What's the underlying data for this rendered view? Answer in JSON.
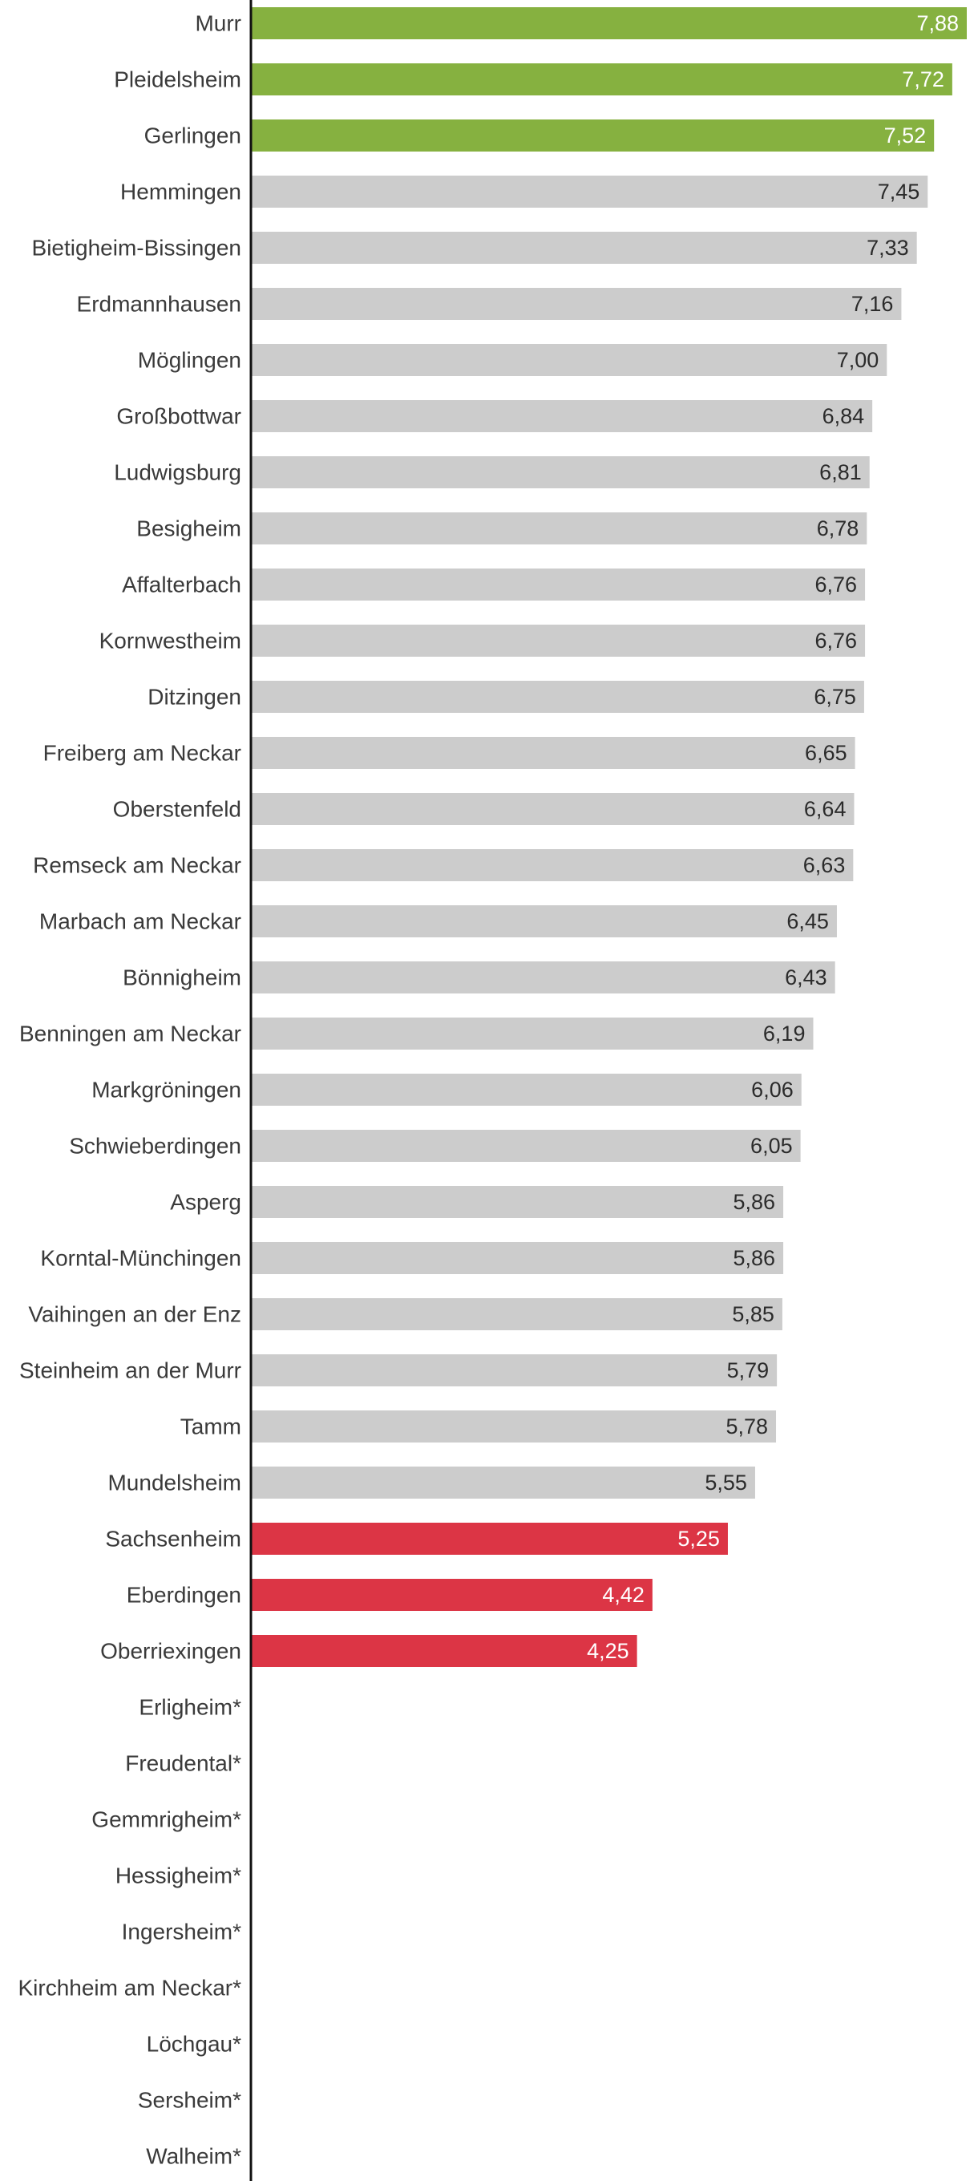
{
  "chart_data": {
    "type": "bar",
    "orientation": "horizontal",
    "title": "",
    "xlabel": "",
    "ylabel": "",
    "xlim": [
      0,
      7.88
    ],
    "grid": false,
    "colors": {
      "top": "#86b140",
      "middle": "#cccccc",
      "bottom": "#dc3545",
      "axis": "#111111",
      "label_dark": "#2b2b2b",
      "label_light": "#ffffff"
    },
    "categories": [
      "Murr",
      "Pleidelsheim",
      "Gerlingen",
      "Hemmingen",
      "Bietigheim-Bissingen",
      "Erdmannhausen",
      "Möglingen",
      "Großbottwar",
      "Ludwigsburg",
      "Besigheim",
      "Affalterbach",
      "Kornwestheim",
      "Ditzingen",
      "Freiberg am Neckar",
      "Oberstenfeld",
      "Remseck am Neckar",
      "Marbach am Neckar",
      "Bönnigheim",
      "Benningen am Neckar",
      "Markgröningen",
      "Schwieberdingen",
      "Asperg",
      "Korntal-Münchingen",
      "Vaihingen an der Enz",
      "Steinheim an der Murr",
      "Tamm",
      "Mundelsheim",
      "Sachsenheim",
      "Eberdingen",
      "Oberriexingen",
      "Erligheim*",
      "Freudental*",
      "Gemmrigheim*",
      "Hessigheim*",
      "Ingersheim*",
      "Kirchheim am Neckar*",
      "Löchgau*",
      "Sersheim*",
      "Walheim*"
    ],
    "values": [
      7.88,
      7.72,
      7.52,
      7.45,
      7.33,
      7.16,
      7.0,
      6.84,
      6.81,
      6.78,
      6.76,
      6.76,
      6.75,
      6.65,
      6.64,
      6.63,
      6.45,
      6.43,
      6.19,
      6.06,
      6.05,
      5.86,
      5.86,
      5.85,
      5.79,
      5.78,
      5.55,
      5.25,
      4.42,
      4.25,
      null,
      null,
      null,
      null,
      null,
      null,
      null,
      null,
      null
    ],
    "value_labels": [
      "7,88",
      "7,72",
      "7,52",
      "7,45",
      "7,33",
      "7,16",
      "7,00",
      "6,84",
      "6,81",
      "6,78",
      "6,76",
      "6,76",
      "6,75",
      "6,65",
      "6,64",
      "6,63",
      "6,45",
      "6,43",
      "6,19",
      "6,06",
      "6,05",
      "5,86",
      "5,86",
      "5,85",
      "5,79",
      "5,78",
      "5,55",
      "5,25",
      "4,42",
      "4,25",
      null,
      null,
      null,
      null,
      null,
      null,
      null,
      null,
      null
    ],
    "groups": [
      "top",
      "top",
      "top",
      "middle",
      "middle",
      "middle",
      "middle",
      "middle",
      "middle",
      "middle",
      "middle",
      "middle",
      "middle",
      "middle",
      "middle",
      "middle",
      "middle",
      "middle",
      "middle",
      "middle",
      "middle",
      "middle",
      "middle",
      "middle",
      "middle",
      "middle",
      "middle",
      "bottom",
      "bottom",
      "bottom",
      "none",
      "none",
      "none",
      "none",
      "none",
      "none",
      "none",
      "none",
      "none"
    ]
  }
}
